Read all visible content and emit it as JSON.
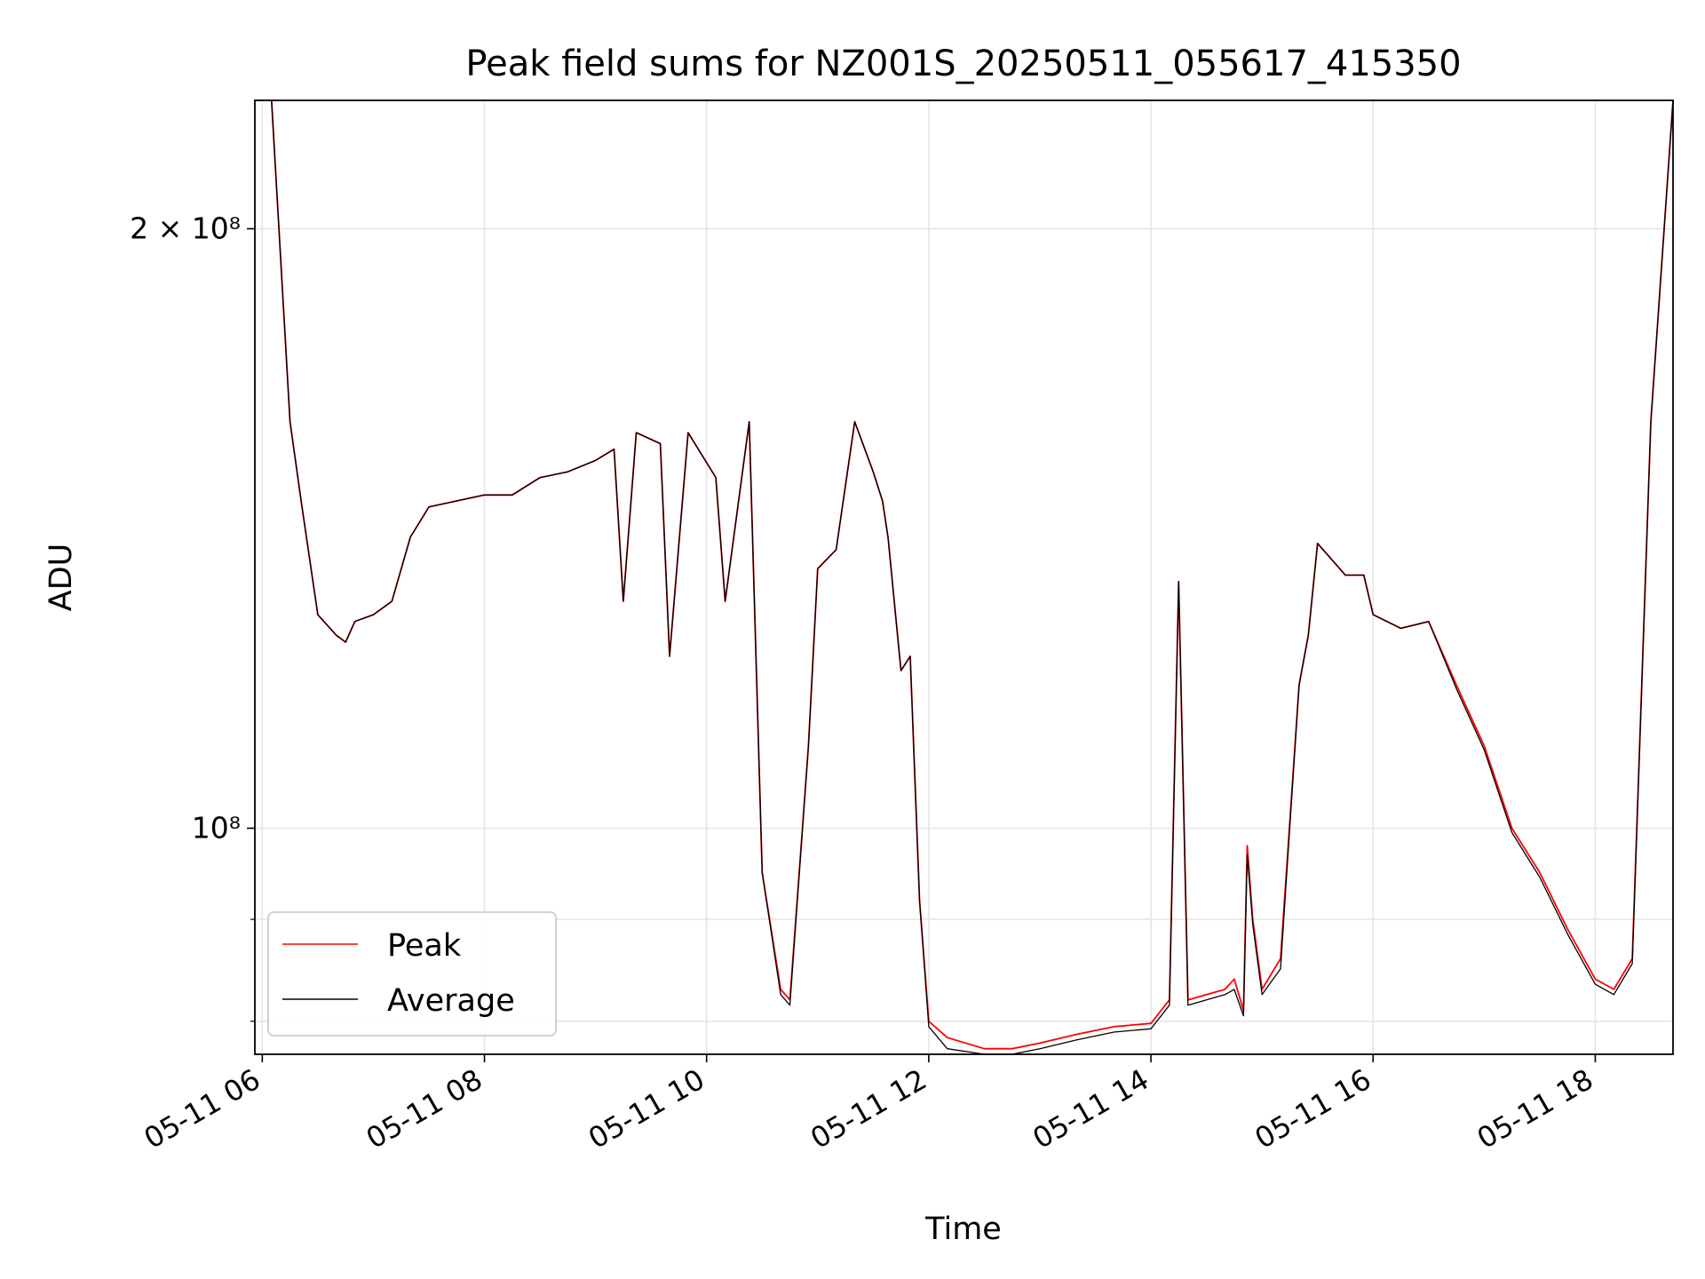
{
  "chart_data": {
    "type": "line",
    "title": "Peak field sums for NZ001S_20250511_055617_415350",
    "xlabel": "Time",
    "ylabel": "ADU",
    "yscale": "log",
    "grid": true,
    "legend_placement": "lower-left",
    "xlim": [
      "2025-05-11 05:56",
      "2025-05-11 18:42"
    ],
    "ylim": [
      77000000,
      232000000
    ],
    "x_ticks": [
      {
        "value": "2025-05-11 06:00",
        "label": "05-11 06"
      },
      {
        "value": "2025-05-11 08:00",
        "label": "05-11 08"
      },
      {
        "value": "2025-05-11 10:00",
        "label": "05-11 10"
      },
      {
        "value": "2025-05-11 12:00",
        "label": "05-11 12"
      },
      {
        "value": "2025-05-11 14:00",
        "label": "05-11 14"
      },
      {
        "value": "2025-05-11 16:00",
        "label": "05-11 16"
      },
      {
        "value": "2025-05-11 18:00",
        "label": "05-11 18"
      }
    ],
    "y_ticks": [
      {
        "value": 200000000,
        "label": "2 × 10⁸"
      },
      {
        "value": 100000000,
        "label": "10⁸"
      }
    ],
    "y_minor_gridlines": [
      90000000,
      80000000
    ],
    "series": [
      {
        "name": "Peak",
        "color": "#ff0000",
        "x": [
          "2025-05-11 05:56",
          "2025-05-11 06:05",
          "2025-05-11 06:15",
          "2025-05-11 06:21",
          "2025-05-11 06:30",
          "2025-05-11 06:40",
          "2025-05-11 06:45",
          "2025-05-11 06:50",
          "2025-05-11 07:00",
          "2025-05-11 07:10",
          "2025-05-11 07:20",
          "2025-05-11 07:30",
          "2025-05-11 07:45",
          "2025-05-11 08:00",
          "2025-05-11 08:15",
          "2025-05-11 08:30",
          "2025-05-11 08:45",
          "2025-05-11 09:00",
          "2025-05-11 09:10",
          "2025-05-11 09:15",
          "2025-05-11 09:22",
          "2025-05-11 09:35",
          "2025-05-11 09:40",
          "2025-05-11 09:50",
          "2025-05-11 10:05",
          "2025-05-11 10:10",
          "2025-05-11 10:23",
          "2025-05-11 10:30",
          "2025-05-11 10:40",
          "2025-05-11 10:45",
          "2025-05-11 10:55",
          "2025-05-11 11:00",
          "2025-05-11 11:10",
          "2025-05-11 11:20",
          "2025-05-11 11:30",
          "2025-05-11 11:35",
          "2025-05-11 11:38",
          "2025-05-11 11:45",
          "2025-05-11 11:50",
          "2025-05-11 11:55",
          "2025-05-11 12:00",
          "2025-05-11 12:10",
          "2025-05-11 12:30",
          "2025-05-11 12:45",
          "2025-05-11 13:00",
          "2025-05-11 13:20",
          "2025-05-11 13:40",
          "2025-05-11 14:00",
          "2025-05-11 14:10",
          "2025-05-11 14:15",
          "2025-05-11 14:20",
          "2025-05-11 14:40",
          "2025-05-11 14:45",
          "2025-05-11 14:50",
          "2025-05-11 14:52",
          "2025-05-11 14:55",
          "2025-05-11 15:00",
          "2025-05-11 15:10",
          "2025-05-11 15:20",
          "2025-05-11 15:25",
          "2025-05-11 15:30",
          "2025-05-11 15:45",
          "2025-05-11 15:55",
          "2025-05-11 16:00",
          "2025-05-11 16:15",
          "2025-05-11 16:30",
          "2025-05-11 16:45",
          "2025-05-11 17:00",
          "2025-05-11 17:15",
          "2025-05-11 17:30",
          "2025-05-11 17:45",
          "2025-05-11 18:00",
          "2025-05-11 18:10",
          "2025-05-11 18:20",
          "2025-05-11 18:30",
          "2025-05-11 18:42"
        ],
        "values": [
          232000000,
          232000000,
          160000000,
          146000000,
          128000000,
          125000000,
          124000000,
          127000000,
          128000000,
          130000000,
          140000000,
          145000000,
          146000000,
          147000000,
          147000000,
          150000000,
          151000000,
          153000000,
          155000000,
          130000000,
          158000000,
          156000000,
          122000000,
          158000000,
          150000000,
          130000000,
          160000000,
          95000000,
          83000000,
          82000000,
          110000000,
          135000000,
          138000000,
          160000000,
          151000000,
          146000000,
          140000000,
          120000000,
          122000000,
          92000000,
          80000000,
          78500000,
          77500000,
          77500000,
          78000000,
          78800000,
          79500000,
          79800000,
          82000000,
          133000000,
          82000000,
          83000000,
          84000000,
          81000000,
          98000000,
          90000000,
          83000000,
          86000000,
          118000000,
          125000000,
          139000000,
          134000000,
          134000000,
          128000000,
          126000000,
          127000000,
          118000000,
          110000000,
          100000000,
          95000000,
          89000000,
          84000000,
          83000000,
          86000000,
          160000000,
          232000000
        ]
      },
      {
        "name": "Average",
        "color": "#000000",
        "x": [
          "2025-05-11 05:56",
          "2025-05-11 06:05",
          "2025-05-11 06:15",
          "2025-05-11 06:21",
          "2025-05-11 06:30",
          "2025-05-11 06:40",
          "2025-05-11 06:45",
          "2025-05-11 06:50",
          "2025-05-11 07:00",
          "2025-05-11 07:10",
          "2025-05-11 07:20",
          "2025-05-11 07:30",
          "2025-05-11 07:45",
          "2025-05-11 08:00",
          "2025-05-11 08:15",
          "2025-05-11 08:30",
          "2025-05-11 08:45",
          "2025-05-11 09:00",
          "2025-05-11 09:10",
          "2025-05-11 09:15",
          "2025-05-11 09:22",
          "2025-05-11 09:35",
          "2025-05-11 09:40",
          "2025-05-11 09:50",
          "2025-05-11 10:05",
          "2025-05-11 10:10",
          "2025-05-11 10:23",
          "2025-05-11 10:30",
          "2025-05-11 10:40",
          "2025-05-11 10:45",
          "2025-05-11 10:55",
          "2025-05-11 11:00",
          "2025-05-11 11:10",
          "2025-05-11 11:20",
          "2025-05-11 11:30",
          "2025-05-11 11:35",
          "2025-05-11 11:38",
          "2025-05-11 11:45",
          "2025-05-11 11:50",
          "2025-05-11 11:55",
          "2025-05-11 12:00",
          "2025-05-11 12:10",
          "2025-05-11 12:30",
          "2025-05-11 12:45",
          "2025-05-11 13:00",
          "2025-05-11 13:20",
          "2025-05-11 13:40",
          "2025-05-11 14:00",
          "2025-05-11 14:10",
          "2025-05-11 14:15",
          "2025-05-11 14:20",
          "2025-05-11 14:40",
          "2025-05-11 14:45",
          "2025-05-11 14:50",
          "2025-05-11 14:52",
          "2025-05-11 14:55",
          "2025-05-11 15:00",
          "2025-05-11 15:10",
          "2025-05-11 15:20",
          "2025-05-11 15:25",
          "2025-05-11 15:30",
          "2025-05-11 15:45",
          "2025-05-11 15:55",
          "2025-05-11 16:00",
          "2025-05-11 16:15",
          "2025-05-11 16:30",
          "2025-05-11 16:45",
          "2025-05-11 17:00",
          "2025-05-11 17:15",
          "2025-05-11 17:30",
          "2025-05-11 17:45",
          "2025-05-11 18:00",
          "2025-05-11 18:10",
          "2025-05-11 18:20",
          "2025-05-11 18:30",
          "2025-05-11 18:42"
        ],
        "values": [
          232000000,
          232000000,
          160000000,
          146000000,
          128000000,
          125000000,
          124000000,
          127000000,
          128000000,
          130000000,
          140000000,
          145000000,
          146000000,
          147000000,
          147000000,
          150000000,
          151000000,
          153000000,
          155000000,
          130000000,
          158000000,
          156000000,
          122000000,
          158000000,
          150000000,
          130000000,
          160000000,
          95000000,
          82500000,
          81500000,
          110000000,
          135000000,
          138000000,
          160000000,
          151000000,
          146000000,
          140000000,
          120000000,
          122000000,
          92000000,
          79500000,
          77500000,
          77000000,
          77000000,
          77500000,
          78300000,
          79000000,
          79300000,
          81500000,
          133000000,
          81500000,
          82500000,
          83000000,
          80500000,
          97000000,
          89500000,
          82500000,
          85000000,
          118000000,
          125000000,
          139000000,
          134000000,
          134000000,
          128000000,
          126000000,
          127000000,
          117500000,
          109500000,
          99500000,
          94500000,
          88500000,
          83500000,
          82500000,
          85500000,
          160000000,
          232000000
        ]
      }
    ]
  }
}
